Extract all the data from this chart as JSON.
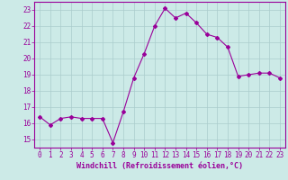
{
  "x": [
    0,
    1,
    2,
    3,
    4,
    5,
    6,
    7,
    8,
    9,
    10,
    11,
    12,
    13,
    14,
    15,
    16,
    17,
    18,
    19,
    20,
    21,
    22,
    23
  ],
  "y": [
    16.4,
    15.9,
    16.3,
    16.4,
    16.3,
    16.3,
    16.3,
    14.8,
    16.7,
    18.8,
    20.3,
    22.0,
    23.1,
    22.5,
    22.8,
    22.2,
    21.5,
    21.3,
    20.7,
    18.9,
    19.0,
    19.1,
    19.1,
    18.8
  ],
  "line_color": "#990099",
  "marker": "D",
  "marker_size": 2,
  "bg_color": "#cceae7",
  "grid_color": "#aacccc",
  "xlabel": "Windchill (Refroidissement éolien,°C)",
  "xlabel_color": "#990099",
  "tick_color": "#990099",
  "spine_color": "#990099",
  "ylim": [
    14.5,
    23.5
  ],
  "xlim": [
    -0.5,
    23.5
  ],
  "yticks": [
    15,
    16,
    17,
    18,
    19,
    20,
    21,
    22,
    23
  ],
  "xticks": [
    0,
    1,
    2,
    3,
    4,
    5,
    6,
    7,
    8,
    9,
    10,
    11,
    12,
    13,
    14,
    15,
    16,
    17,
    18,
    19,
    20,
    21,
    22,
    23
  ],
  "line_width": 0.8,
  "font_size": 5.5,
  "xlabel_font_size": 6.0
}
